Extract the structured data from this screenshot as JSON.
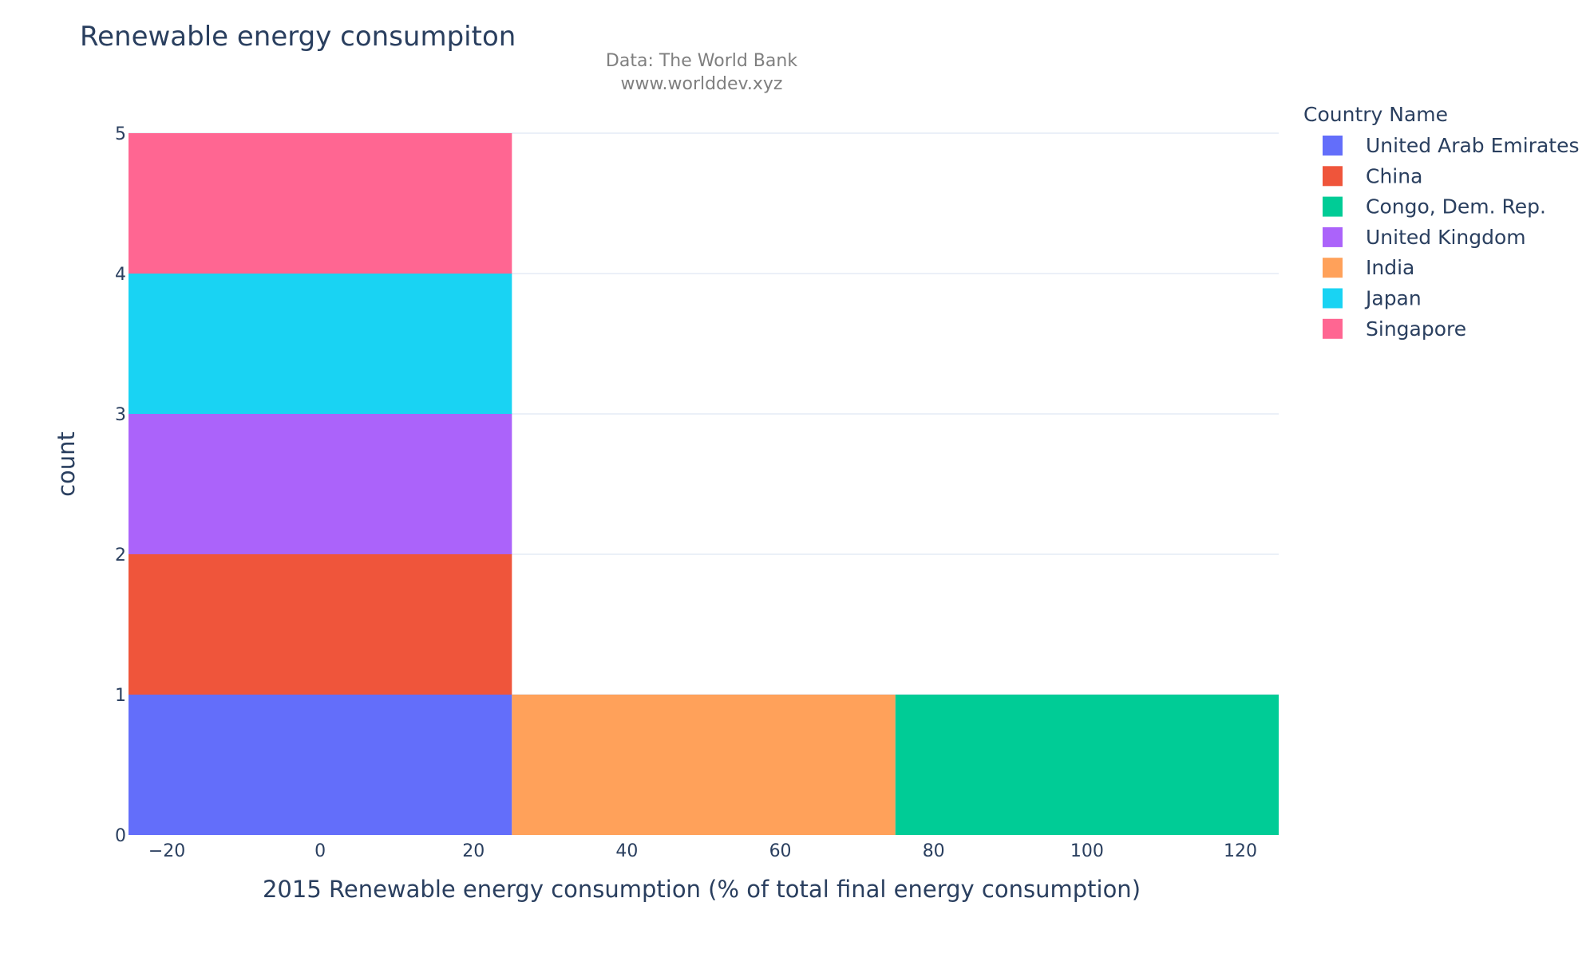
{
  "chart_data": {
    "type": "bar",
    "title": "Renewable energy consumpiton",
    "subtitle_lines": [
      "Data: The World Bank",
      "www.worlddev.xyz"
    ],
    "xlabel": "2015 Renewable energy consumption (% of total final energy consumption)",
    "ylabel": "count",
    "xlim": [
      -25,
      125
    ],
    "ylim": [
      0,
      5
    ],
    "x_ticks": [
      -20,
      0,
      20,
      40,
      60,
      80,
      100,
      120
    ],
    "x_tick_labels": [
      "−20",
      "0",
      "20",
      "40",
      "60",
      "80",
      "100",
      "120"
    ],
    "y_ticks": [
      0,
      1,
      2,
      3,
      4,
      5
    ],
    "y_tick_labels": [
      "0",
      "1",
      "2",
      "3",
      "4",
      "5"
    ],
    "grid": true,
    "barmode": "stack",
    "legend_title": "Country Name",
    "legend_position": "right",
    "bins": [
      [
        -25,
        25
      ],
      [
        25,
        75
      ],
      [
        75,
        125
      ]
    ],
    "series": [
      {
        "name": "United Arab Emirates",
        "color": "#636efa",
        "counts": [
          1,
          0,
          0
        ]
      },
      {
        "name": "China",
        "color": "#ef553b",
        "counts": [
          1,
          0,
          0
        ]
      },
      {
        "name": "Congo, Dem. Rep.",
        "color": "#00cc96",
        "counts": [
          0,
          0,
          1
        ]
      },
      {
        "name": "United Kingdom",
        "color": "#ab63fa",
        "counts": [
          1,
          0,
          0
        ]
      },
      {
        "name": "India",
        "color": "#ffa15a",
        "counts": [
          0,
          1,
          0
        ]
      },
      {
        "name": "Japan",
        "color": "#19d3f3",
        "counts": [
          1,
          0,
          0
        ]
      },
      {
        "name": "Singapore",
        "color": "#ff6692",
        "counts": [
          1,
          0,
          0
        ]
      }
    ]
  }
}
